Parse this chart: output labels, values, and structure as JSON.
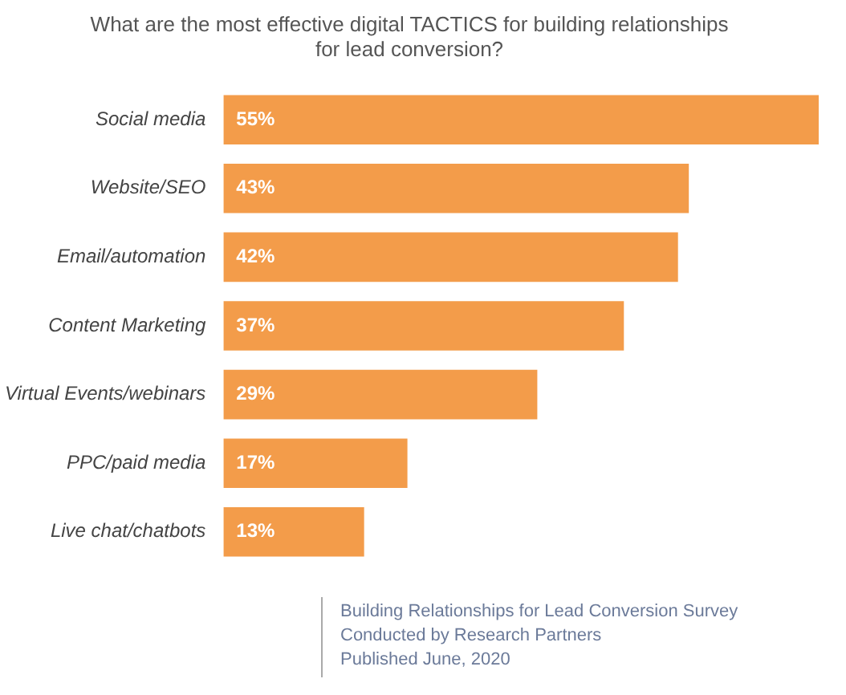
{
  "chart_data": {
    "type": "bar",
    "orientation": "horizontal",
    "title": "What are the most effective digital TACTICS for building relationships for lead conversion?",
    "categories": [
      "Social media",
      "Website/SEO",
      "Email/automation",
      "Content Marketing",
      "Virtual Events/webinars",
      "PPC/paid media",
      "Live chat/chatbots"
    ],
    "values": [
      55,
      43,
      42,
      37,
      29,
      17,
      13
    ],
    "color": "#f39c4a",
    "data_labels": true,
    "value_labels": [
      "55%",
      "43%",
      "42%",
      "37%",
      "29%",
      "17%",
      "13%"
    ],
    "annotations": [
      "Building Relationships for Lead Conversion Survey",
      "Conducted by Research Partners",
      "Published June, 2020"
    ]
  }
}
